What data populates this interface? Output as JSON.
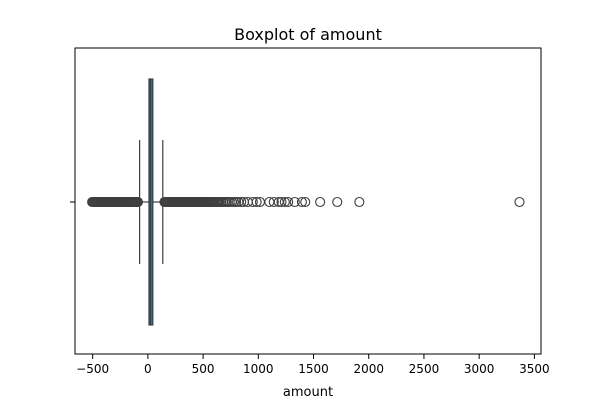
{
  "chart_data": {
    "type": "boxplot",
    "title": "Boxplot of amount",
    "xlabel": "amount",
    "ylabel": "",
    "orientation": "horizontal",
    "xlim": [
      -660,
      3560
    ],
    "x_ticks": [
      -500,
      0,
      500,
      1000,
      1500,
      2000,
      2500,
      3000,
      3500
    ],
    "x_tick_labels": [
      "−500",
      "0",
      "500",
      "1000",
      "1500",
      "2000",
      "2500",
      "3000",
      "3500"
    ],
    "grid": false,
    "legend": "none",
    "box": {
      "q1": 10,
      "median": 22,
      "q3": 45,
      "whisker_low": -75,
      "whisker_high": 135
    },
    "outliers": [
      -505,
      -498,
      -490,
      -482,
      -474,
      -466,
      -458,
      -450,
      -442,
      -434,
      -426,
      -418,
      -410,
      -402,
      -394,
      -386,
      -378,
      -370,
      -362,
      -354,
      -346,
      -338,
      -330,
      -322,
      -314,
      -306,
      -298,
      -290,
      -282,
      -274,
      -266,
      -258,
      -250,
      -242,
      -234,
      -226,
      -218,
      -210,
      -202,
      -194,
      -186,
      -178,
      -170,
      -162,
      -154,
      -146,
      -138,
      -130,
      -122,
      -114,
      -106,
      -98,
      -90,
      150,
      158,
      166,
      174,
      182,
      190,
      198,
      206,
      214,
      222,
      230,
      238,
      246,
      254,
      262,
      270,
      278,
      286,
      294,
      302,
      310,
      318,
      326,
      334,
      342,
      350,
      358,
      366,
      374,
      382,
      390,
      398,
      406,
      414,
      422,
      430,
      438,
      446,
      454,
      462,
      470,
      478,
      486,
      494,
      502,
      510,
      520,
      530,
      540,
      550,
      560,
      570,
      580,
      590,
      600,
      612,
      625,
      638,
      650,
      665,
      680,
      695,
      710,
      725,
      740,
      760,
      780,
      800,
      820,
      845,
      870,
      905,
      950,
      985,
      1015,
      1100,
      1140,
      1185,
      1210,
      1240,
      1270,
      1330,
      1395,
      1425,
      1560,
      1715,
      1915,
      3365
    ],
    "colors": {
      "box_fill": "#3a6c8c",
      "lines": "#3f3f3f",
      "marker_edge": "#3f3f3f"
    }
  }
}
